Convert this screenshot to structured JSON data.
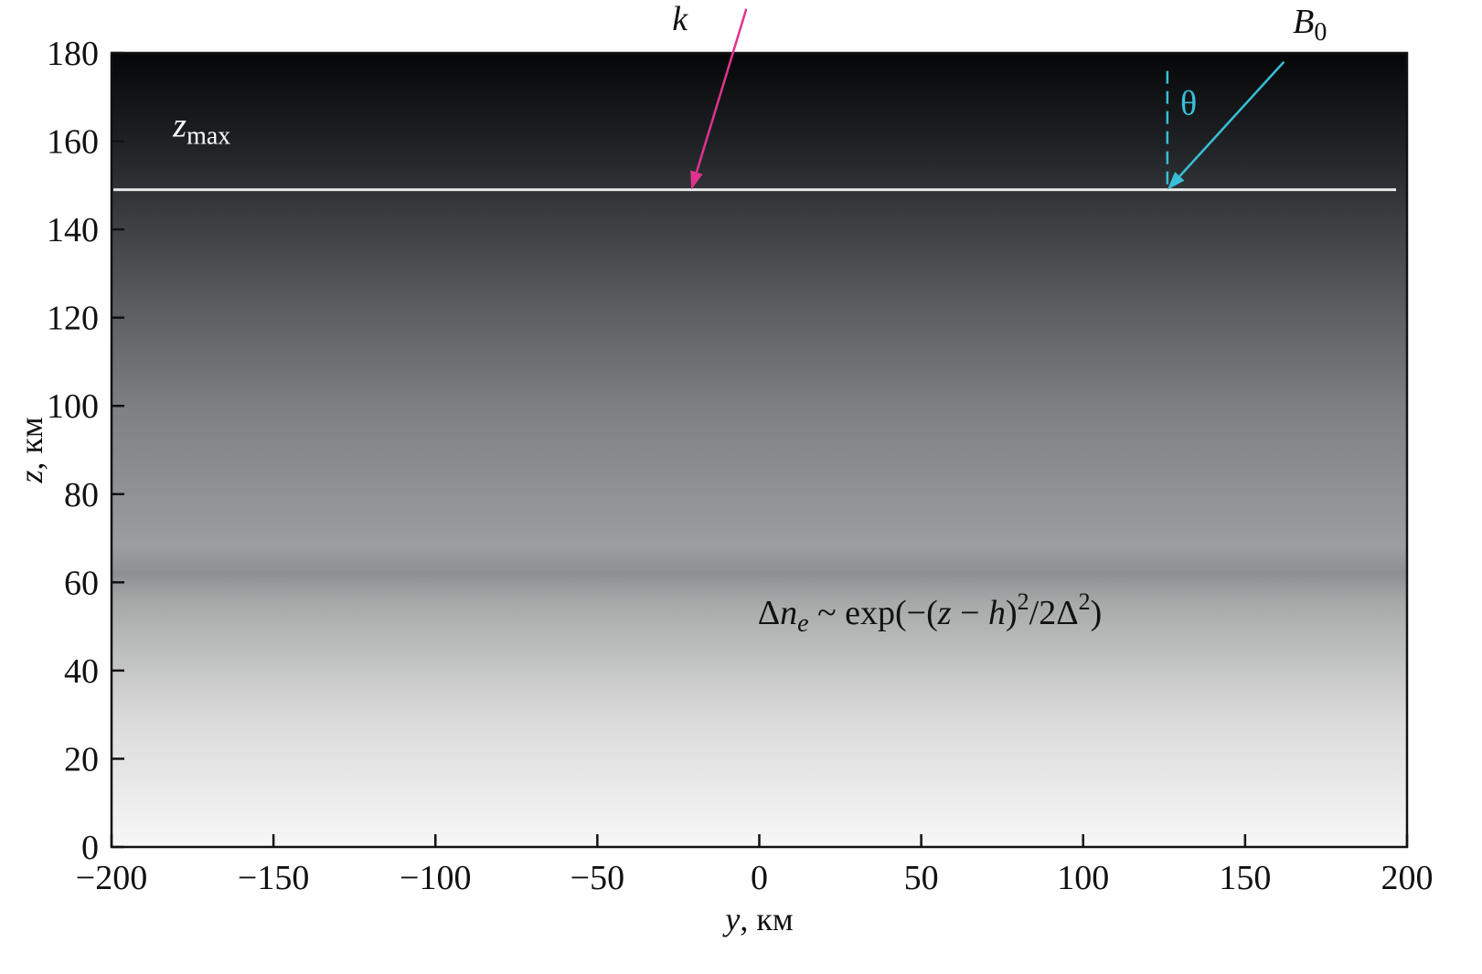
{
  "chart_data": {
    "type": "heatmap",
    "xlabel_var": "y",
    "xlabel_unit": ", км",
    "ylabel_var": "z",
    "ylabel_unit": ", км",
    "xlim": [
      -200,
      200
    ],
    "ylim": [
      0,
      180
    ],
    "xticks": [
      -200,
      -150,
      -100,
      -50,
      0,
      50,
      100,
      150,
      200
    ],
    "xtick_labels": [
      "−200",
      "−150",
      "−100",
      "−50",
      "0",
      "50",
      "100",
      "150",
      "200"
    ],
    "yticks": [
      0,
      20,
      40,
      60,
      80,
      100,
      120,
      140,
      160,
      180
    ],
    "ytick_labels": [
      "0",
      "20",
      "40",
      "60",
      "80",
      "100",
      "120",
      "140",
      "160",
      "180"
    ],
    "colormap": "grayscale",
    "gradient_stops": [
      {
        "z": 0,
        "color": "#f7f7f7"
      },
      {
        "z": 30,
        "color": "#d9d9d9"
      },
      {
        "z": 55,
        "color": "#a8aaaa"
      },
      {
        "z": 62,
        "color": "#8d9091"
      },
      {
        "z": 68,
        "color": "#9b9e9f"
      },
      {
        "z": 100,
        "color": "#7c8081"
      },
      {
        "z": 140,
        "color": "#3e4244"
      },
      {
        "z": 160,
        "color": "#1e2124"
      },
      {
        "z": 180,
        "color": "#050608"
      }
    ],
    "zmax_line": {
      "z": 149,
      "label": "z",
      "label_sub": "max"
    },
    "k_vector": {
      "label": "k",
      "from": [
        -4,
        190
      ],
      "to": [
        -21,
        149
      ],
      "color": "#e0338f"
    },
    "b0_vector": {
      "label": "B",
      "label_sub": "0",
      "from": [
        162,
        178
      ],
      "to": [
        126,
        149
      ],
      "color": "#39bfd8"
    },
    "vertical_ref": {
      "y": 126,
      "z_from": 149,
      "z_to": 176,
      "color": "#39bfd8"
    },
    "theta_label": "θ",
    "formula": {
      "delta": "Δ",
      "n": "n",
      "e": "e",
      "tilde": " ~ exp(−(",
      "z": "z",
      "minus": " − ",
      "h": "h",
      "close1": ")",
      "sq1": "2",
      "div": "/2Δ",
      "sq2": "2",
      "close2": ")"
    }
  }
}
